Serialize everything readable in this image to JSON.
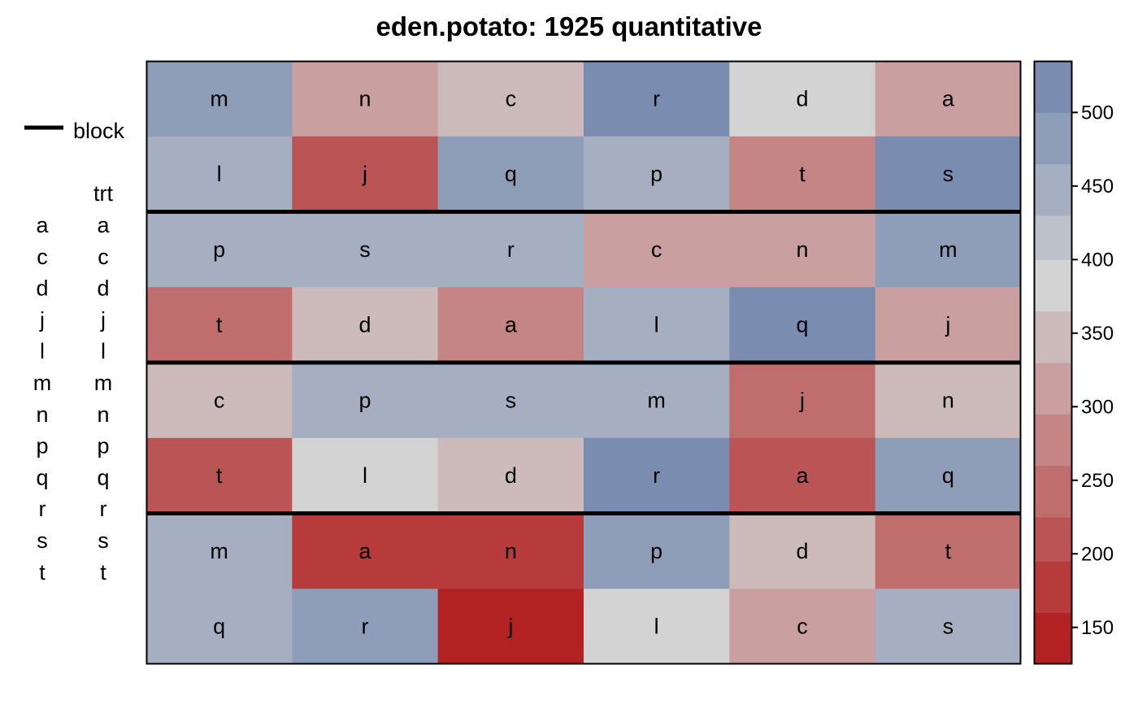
{
  "chart_data": {
    "type": "heatmap",
    "title": "eden.potato: 1925 quantitative",
    "n_rows": 8,
    "n_cols": 6,
    "block_separators_after_rows": [
      2,
      4,
      6
    ],
    "cells": [
      [
        {
          "trt": "m",
          "value": 470
        },
        {
          "trt": "n",
          "value": 320
        },
        {
          "trt": "c",
          "value": 355
        },
        {
          "trt": "r",
          "value": 510
        },
        {
          "trt": "d",
          "value": 390
        },
        {
          "trt": "a",
          "value": 320
        }
      ],
      [
        {
          "trt": "l",
          "value": 440
        },
        {
          "trt": "j",
          "value": 205
        },
        {
          "trt": "q",
          "value": 470
        },
        {
          "trt": "p",
          "value": 440
        },
        {
          "trt": "t",
          "value": 270
        },
        {
          "trt": "s",
          "value": 510
        }
      ],
      [
        {
          "trt": "p",
          "value": 440
        },
        {
          "trt": "s",
          "value": 440
        },
        {
          "trt": "r",
          "value": 440
        },
        {
          "trt": "c",
          "value": 320
        },
        {
          "trt": "n",
          "value": 320
        },
        {
          "trt": "m",
          "value": 470
        }
      ],
      [
        {
          "trt": "t",
          "value": 240
        },
        {
          "trt": "d",
          "value": 355
        },
        {
          "trt": "a",
          "value": 270
        },
        {
          "trt": "l",
          "value": 440
        },
        {
          "trt": "q",
          "value": 510
        },
        {
          "trt": "j",
          "value": 320
        }
      ],
      [
        {
          "trt": "c",
          "value": 355
        },
        {
          "trt": "p",
          "value": 440
        },
        {
          "trt": "s",
          "value": 440
        },
        {
          "trt": "m",
          "value": 440
        },
        {
          "trt": "j",
          "value": 240
        },
        {
          "trt": "n",
          "value": 355
        }
      ],
      [
        {
          "trt": "t",
          "value": 205
        },
        {
          "trt": "l",
          "value": 390
        },
        {
          "trt": "d",
          "value": 355
        },
        {
          "trt": "r",
          "value": 510
        },
        {
          "trt": "a",
          "value": 205
        },
        {
          "trt": "q",
          "value": 470
        }
      ],
      [
        {
          "trt": "m",
          "value": 440
        },
        {
          "trt": "a",
          "value": 175
        },
        {
          "trt": "n",
          "value": 175
        },
        {
          "trt": "p",
          "value": 470
        },
        {
          "trt": "d",
          "value": 355
        },
        {
          "trt": "t",
          "value": 240
        }
      ],
      [
        {
          "trt": "q",
          "value": 440
        },
        {
          "trt": "r",
          "value": 470
        },
        {
          "trt": "j",
          "value": 150
        },
        {
          "trt": "l",
          "value": 390
        },
        {
          "trt": "c",
          "value": 320
        },
        {
          "trt": "s",
          "value": 440
        }
      ]
    ],
    "colorbar": {
      "range": [
        125,
        535
      ],
      "ticks": [
        150,
        200,
        250,
        300,
        350,
        400,
        450,
        500
      ],
      "bins": [
        {
          "from": 125,
          "to": 160,
          "color": "#b22222"
        },
        {
          "from": 160,
          "to": 195,
          "color": "#b73b3b"
        },
        {
          "from": 195,
          "to": 225,
          "color": "#bb5555"
        },
        {
          "from": 225,
          "to": 260,
          "color": "#c06d6d"
        },
        {
          "from": 260,
          "to": 295,
          "color": "#c58585"
        },
        {
          "from": 295,
          "to": 330,
          "color": "#c99f9f"
        },
        {
          "from": 330,
          "to": 365,
          "color": "#cdbbbb"
        },
        {
          "from": 365,
          "to": 400,
          "color": "#d3d3d3"
        },
        {
          "from": 400,
          "to": 430,
          "color": "#bcc1cb"
        },
        {
          "from": 430,
          "to": 465,
          "color": "#a5afc1"
        },
        {
          "from": 465,
          "to": 500,
          "color": "#8f9eb8"
        },
        {
          "from": 500,
          "to": 535,
          "color": "#7a8cb0"
        }
      ]
    },
    "key": {
      "block_label": "block",
      "trt_header": "trt",
      "left_column": [
        "a",
        "c",
        "d",
        "j",
        "l",
        "m",
        "n",
        "p",
        "q",
        "r",
        "s",
        "t"
      ],
      "right_column": [
        "a",
        "c",
        "d",
        "j",
        "l",
        "m",
        "n",
        "p",
        "q",
        "r",
        "s",
        "t"
      ]
    }
  }
}
